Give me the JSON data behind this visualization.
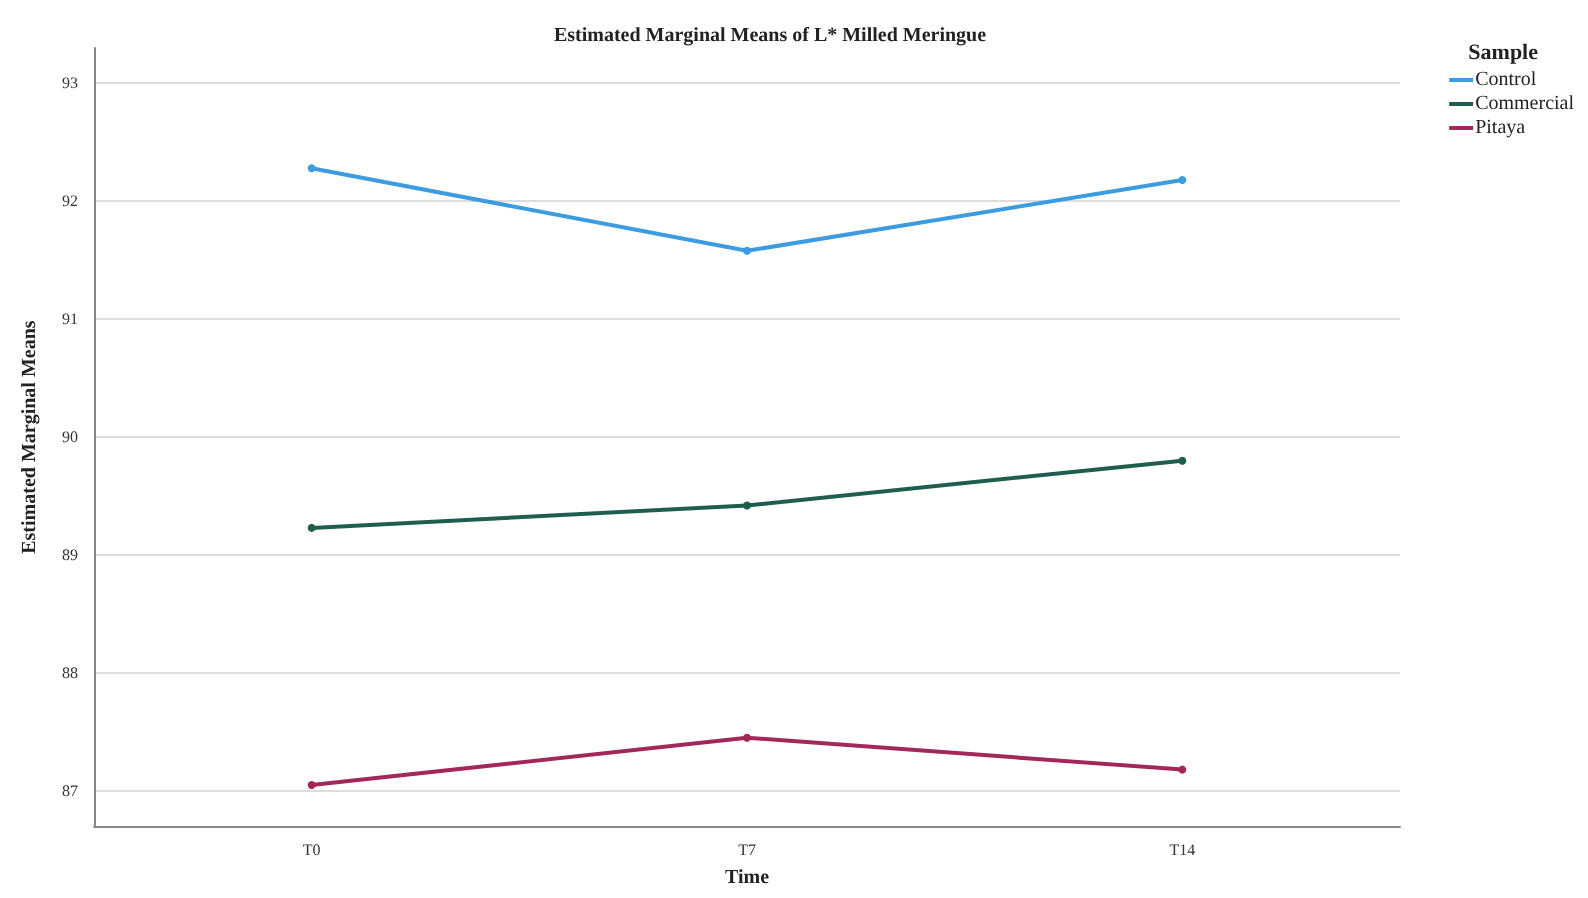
{
  "chart_data": {
    "type": "line",
    "title": "Estimated Marginal Means of L* Milled Meringue",
    "xlabel": "Time",
    "ylabel": "Estimated Marginal Means",
    "legend_title": "Sample",
    "categories": [
      "T0",
      "T7",
      "T14"
    ],
    "series": [
      {
        "name": "Control",
        "color": "#3d9be0",
        "values": [
          92.28,
          91.58,
          92.18
        ]
      },
      {
        "name": "Commercial",
        "color": "#1f5e4e",
        "values": [
          89.23,
          89.42,
          89.8
        ]
      },
      {
        "name": "Pitaya",
        "color": "#a3285a",
        "values": [
          87.05,
          87.45,
          87.18
        ]
      }
    ],
    "ylim": [
      86.7,
      93.3
    ],
    "yticks": [
      87,
      88,
      89,
      90,
      91,
      92,
      93
    ],
    "grid": "y",
    "legend": "top right",
    "marker": "circle",
    "line_style": "solid"
  }
}
